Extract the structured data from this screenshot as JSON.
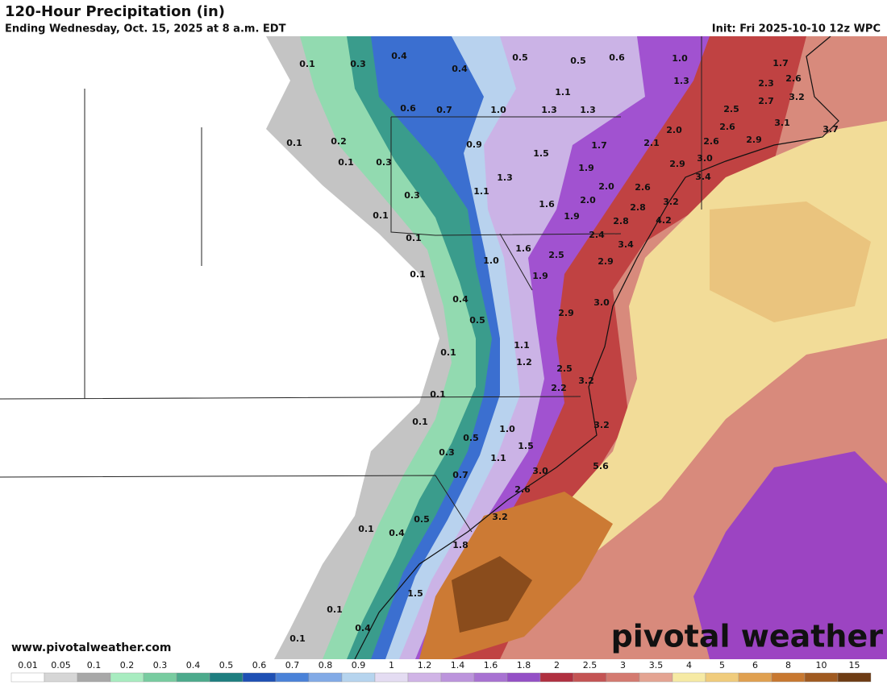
{
  "header": {
    "title": "120-Hour Precipitation (in)",
    "subtitle": "Ending Wednesday, Oct. 15, 2025 at 8 a.m. EDT",
    "init": "Init: Fri 2025-10-10 12z WPC"
  },
  "map_labels": [
    "0.1",
    "0.3",
    "0.4",
    "0.4",
    "0.5",
    "0.5",
    "0.6",
    "1.0",
    "1.7",
    "1.3",
    "2.3",
    "2.6",
    "1.1",
    "0.6",
    "0.7",
    "1.0",
    "1.3",
    "1.3",
    "2.7",
    "3.2",
    "2.5",
    "2.0",
    "2.6",
    "3.1",
    "3.7",
    "0.1",
    "0.2",
    "0.9",
    "1.5",
    "1.7",
    "2.1",
    "2.6",
    "2.9",
    "3.0",
    "0.1",
    "0.3",
    "1.9",
    "2.9",
    "3.4",
    "1.3",
    "2.0",
    "2.6",
    "1.1",
    "0.3",
    "2.0",
    "3.2",
    "1.6",
    "2.8",
    "1.9",
    "4.2",
    "0.1",
    "2.8",
    "0.1",
    "2.4",
    "3.4",
    "1.6",
    "2.5",
    "1.0",
    "2.9",
    "0.1",
    "1.9",
    "0.4",
    "3.0",
    "2.9",
    "0.5",
    "1.1",
    "0.1",
    "1.2",
    "2.5",
    "3.2",
    "2.2",
    "0.1",
    "0.1",
    "1.0",
    "3.2",
    "0.5",
    "1.5",
    "0.3",
    "1.1",
    "3.0",
    "5.6",
    "0.7",
    "2.6",
    "0.5",
    "3.2",
    "0.1",
    "0.4",
    "1.8",
    "1.5",
    "0.1",
    "0.4",
    "0.1"
  ],
  "watermark": "www.pivotalweather.com",
  "logo": "pivotal weather",
  "colorbar": [
    {
      "label": "0.01",
      "color": "#ffffff"
    },
    {
      "label": "0.05",
      "color": "#d6d6d6"
    },
    {
      "label": "0.1",
      "color": "#a8a8a8"
    },
    {
      "label": "0.2",
      "color": "#a8ecc0"
    },
    {
      "label": "0.3",
      "color": "#78cca0"
    },
    {
      "label": "0.4",
      "color": "#4caa8c"
    },
    {
      "label": "0.5",
      "color": "#1e7e80"
    },
    {
      "label": "0.6",
      "color": "#1e50b4"
    },
    {
      "label": "0.7",
      "color": "#4a82d8"
    },
    {
      "label": "0.8",
      "color": "#82aae6"
    },
    {
      "label": "0.9",
      "color": "#b6d4ee"
    },
    {
      "label": "1",
      "color": "#e4dcf2"
    },
    {
      "label": "1.2",
      "color": "#d0b4e6"
    },
    {
      "label": "1.4",
      "color": "#bc94dc"
    },
    {
      "label": "1.6",
      "color": "#a872d2"
    },
    {
      "label": "1.8",
      "color": "#9450c6"
    },
    {
      "label": "2",
      "color": "#b03040"
    },
    {
      "label": "2.5",
      "color": "#c45454"
    },
    {
      "label": "3",
      "color": "#d47a70"
    },
    {
      "label": "3.5",
      "color": "#e4a492"
    },
    {
      "label": "4",
      "color": "#f6eaa4"
    },
    {
      "label": "5",
      "color": "#f0cc7c"
    },
    {
      "label": "6",
      "color": "#e0a050"
    },
    {
      "label": "8",
      "color": "#c87830"
    },
    {
      "label": "10",
      "color": "#a05a20"
    },
    {
      "label": "15",
      "color": "#6e3c14"
    }
  ]
}
